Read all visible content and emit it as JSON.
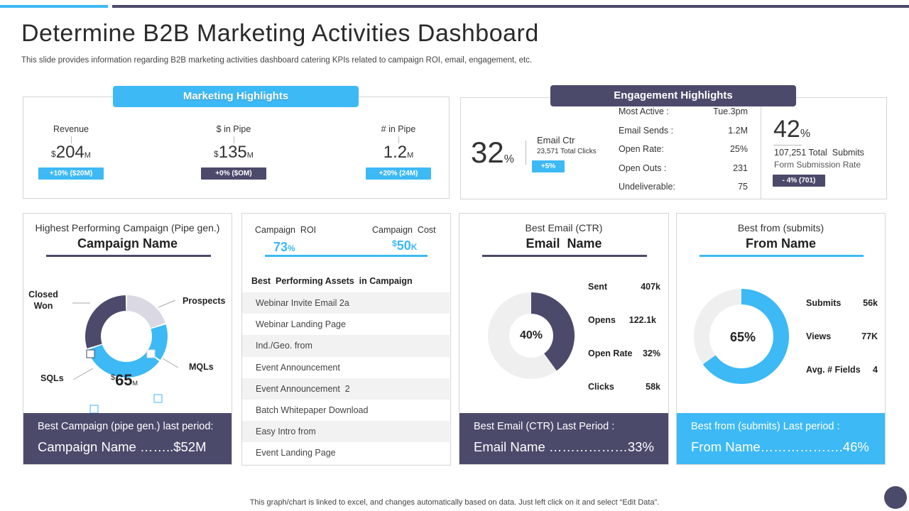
{
  "colors": {
    "accent_blue": "#3db9f5",
    "navy": "#4b4a6b",
    "light_gray": "#e5e5e5",
    "ring_gray": "#d9d8e3",
    "line_gray": "#a9a9a9"
  },
  "header": {
    "title": "Determine B2B Marketing Activities Dashboard",
    "subtitle": "This slide provides information regarding B2B marketing activities dashboard catering KPIs related to campaign ROI, email, engagement, etc."
  },
  "marketing": {
    "title": "Marketing Highlights",
    "items": [
      {
        "label": "Revenue",
        "currency": "$",
        "value": "204",
        "unit": "M",
        "badge": "+10% ($20M)"
      },
      {
        "label": "$ in Pipe",
        "currency": "$",
        "value": "135",
        "unit": "M",
        "badge": "+0% ($OM)"
      },
      {
        "label": "# in Pipe",
        "currency": "",
        "value": "1.2",
        "unit": "M",
        "badge": "+20% (24M)"
      }
    ]
  },
  "engagement": {
    "title": "Engagement Highlights",
    "ctr_value": "32",
    "ctr_unit": "%",
    "ctr_label": "Email Ctr",
    "ctr_sub": "23,571 Total Clicks",
    "ctr_badge": "+5%",
    "stats": [
      {
        "label": "Most Active :",
        "value": "Tue.3pm"
      },
      {
        "label": "Email Sends :",
        "value": "1.2M"
      },
      {
        "label": "Open Rate:",
        "value": "25%"
      },
      {
        "label": "Open Outs :",
        "value": "231"
      },
      {
        "label": "Undeliverable:",
        "value": "75"
      }
    ],
    "submit_value": "42",
    "submit_unit": "%",
    "submit_total": "107,251 Total  Submits",
    "submit_rate_label": "Form Submission Rate",
    "submit_badge": "- 4% (701)"
  },
  "campaign": {
    "subtitle": "Highest Performing Campaign (Pipe gen.)",
    "name": "Campaign Name",
    "donut": {
      "center_currency": "$",
      "center_value": "65",
      "center_unit": "M",
      "labels": {
        "closed_won": "Closed\nWon",
        "prospects": "Prospects",
        "mqls": "MQLs",
        "sqls": "SQLs"
      },
      "segments": [
        {
          "name": "Prospects",
          "value": 20,
          "color": "#d9d8e3"
        },
        {
          "name": "MQLs",
          "value": 15,
          "color": "#3db9f5"
        },
        {
          "name": "SQLs",
          "value": 35,
          "color": "#3db9f5"
        },
        {
          "name": "Closed Won",
          "value": 30,
          "color": "#4b4a6b"
        }
      ]
    },
    "footer_title": "Best Campaign (pipe gen.) last period:",
    "footer_value": "Campaign Name ……..$52M"
  },
  "assets": {
    "roi_label": "Campaign  ROI",
    "roi_value": "73",
    "roi_unit": "%",
    "cost_label": "Campaign  Cost",
    "cost_currency": "$",
    "cost_value": "50",
    "cost_unit": "K",
    "list_title": "Best  Performing Assets  in Campaign",
    "items": [
      "Webinar Invite Email 2a",
      "Webinar Landing Page",
      "Ind./Geo. from",
      "Event Announcement",
      "Event Announcement  2",
      "Batch Whitepaper Download",
      "Easy Intro from",
      "Event Landing Page"
    ]
  },
  "email": {
    "subtitle": "Best Email (CTR)",
    "name": "Email  Name",
    "donut_value": "40%",
    "donut_fraction": 0.4,
    "metrics": [
      {
        "label": "Sent",
        "value": "407k"
      },
      {
        "label": "Opens",
        "value": "122.1k"
      },
      {
        "label": "Open Rate",
        "value": "32%"
      },
      {
        "label": "Clicks",
        "value": "58k"
      }
    ],
    "footer_title": "Best Email (CTR) Last Period :",
    "footer_value": "Email Name ………………33%"
  },
  "form": {
    "subtitle": "Best from (submits)",
    "name": "From Name",
    "donut_value": "65%",
    "donut_fraction": 0.65,
    "metrics": [
      {
        "label": "Submits",
        "value": "56k"
      },
      {
        "label": "Views",
        "value": "77K"
      },
      {
        "label": "Avg. # Fields",
        "value": "4"
      }
    ],
    "footer_title": "Best from (submits) Last period :",
    "footer_value": "From Name……………….46%"
  },
  "footer": {
    "note": "This graph/chart is linked to excel,  and changes automatically based on data. Just left click on it and select “Edit Data”."
  }
}
